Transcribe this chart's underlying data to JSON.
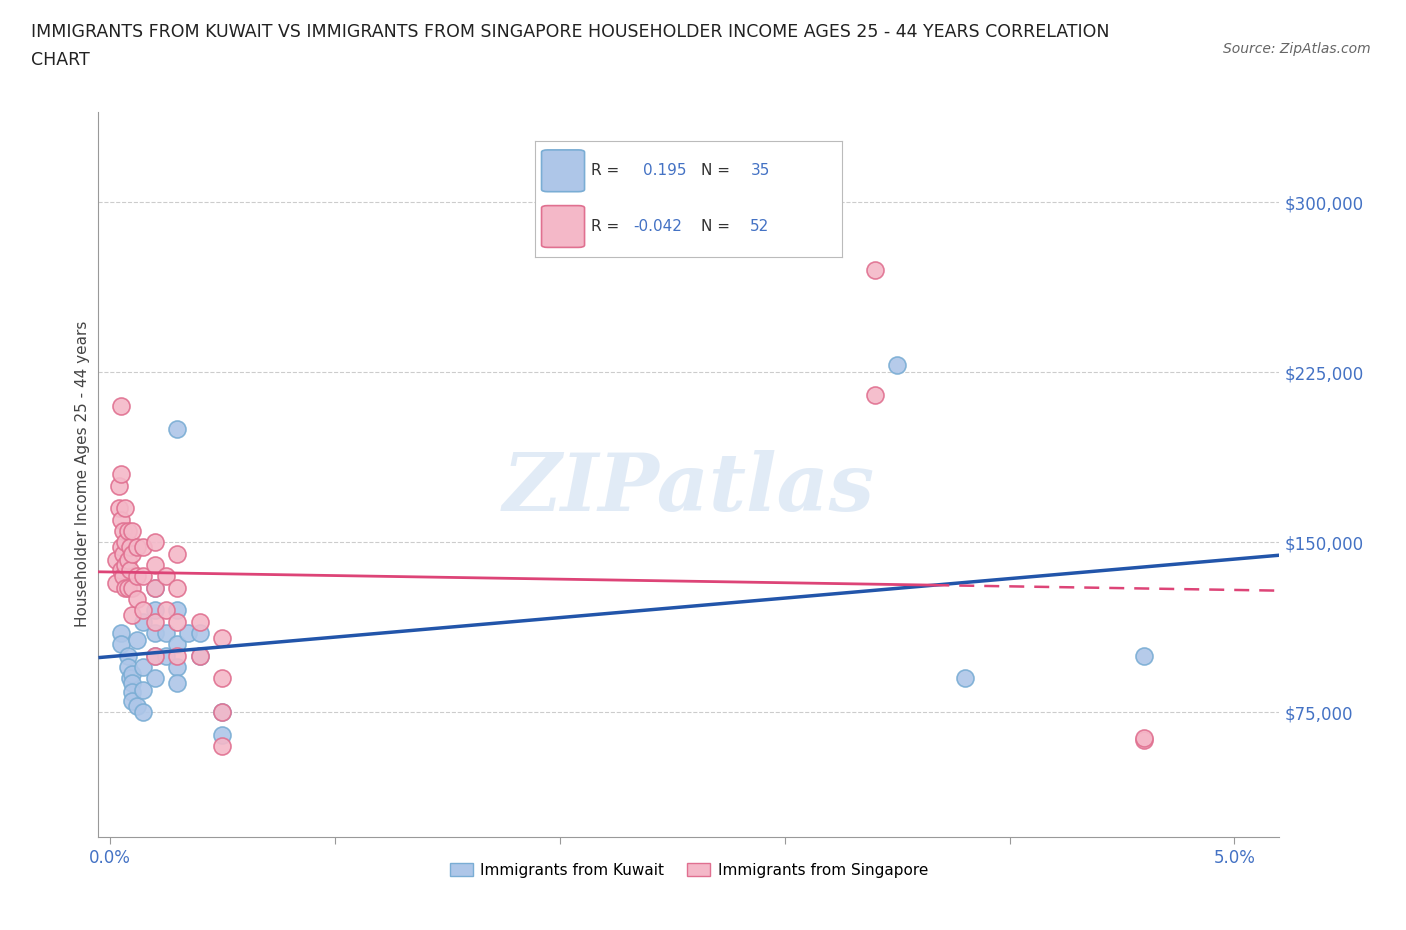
{
  "title_line1": "IMMIGRANTS FROM KUWAIT VS IMMIGRANTS FROM SINGAPORE HOUSEHOLDER INCOME AGES 25 - 44 YEARS CORRELATION",
  "title_line2": "CHART",
  "source": "Source: ZipAtlas.com",
  "ylabel": "Householder Income Ages 25 - 44 years",
  "watermark": "ZIPatlas",
  "r_kuwait": 0.195,
  "n_kuwait": 35,
  "r_singapore": -0.042,
  "n_singapore": 52,
  "xlim": [
    -0.0005,
    0.052
  ],
  "ylim": [
    20000,
    340000
  ],
  "yticks": [
    75000,
    150000,
    225000,
    300000
  ],
  "ytick_labels": [
    "$75,000",
    "$150,000",
    "$225,000",
    "$300,000"
  ],
  "xticks": [
    0.0,
    0.01,
    0.02,
    0.03,
    0.04,
    0.05
  ],
  "xtick_labels": [
    "0.0%",
    "",
    "",
    "",
    "",
    "5.0%"
  ],
  "background_color": "#ffffff",
  "grid_color": "#cccccc",
  "kuwait_color": "#aec6e8",
  "kuwait_edge_color": "#7aadd4",
  "singapore_color": "#f4b8c8",
  "singapore_edge_color": "#e07090",
  "line_kuwait_color": "#2255aa",
  "line_singapore_color": "#dd4477",
  "tick_color": "#4472c4",
  "axis_color": "#999999",
  "kuwait_points": [
    [
      0.0005,
      110000
    ],
    [
      0.0005,
      105000
    ],
    [
      0.0008,
      100000
    ],
    [
      0.0008,
      95000
    ],
    [
      0.0009,
      90000
    ],
    [
      0.001,
      92000
    ],
    [
      0.001,
      88000
    ],
    [
      0.001,
      84000
    ],
    [
      0.001,
      80000
    ],
    [
      0.0012,
      107000
    ],
    [
      0.0012,
      78000
    ],
    [
      0.0015,
      115000
    ],
    [
      0.0015,
      95000
    ],
    [
      0.0015,
      85000
    ],
    [
      0.0015,
      75000
    ],
    [
      0.002,
      130000
    ],
    [
      0.002,
      120000
    ],
    [
      0.002,
      110000
    ],
    [
      0.002,
      100000
    ],
    [
      0.002,
      90000
    ],
    [
      0.0025,
      110000
    ],
    [
      0.0025,
      100000
    ],
    [
      0.003,
      200000
    ],
    [
      0.003,
      120000
    ],
    [
      0.003,
      105000
    ],
    [
      0.003,
      95000
    ],
    [
      0.003,
      88000
    ],
    [
      0.0035,
      110000
    ],
    [
      0.004,
      110000
    ],
    [
      0.004,
      100000
    ],
    [
      0.005,
      75000
    ],
    [
      0.005,
      65000
    ],
    [
      0.035,
      228000
    ],
    [
      0.038,
      90000
    ],
    [
      0.046,
      100000
    ]
  ],
  "singapore_points": [
    [
      0.0003,
      142000
    ],
    [
      0.0003,
      132000
    ],
    [
      0.0004,
      175000
    ],
    [
      0.0004,
      165000
    ],
    [
      0.0005,
      210000
    ],
    [
      0.0005,
      180000
    ],
    [
      0.0005,
      160000
    ],
    [
      0.0005,
      148000
    ],
    [
      0.0005,
      138000
    ],
    [
      0.0006,
      155000
    ],
    [
      0.0006,
      145000
    ],
    [
      0.0006,
      135000
    ],
    [
      0.0007,
      165000
    ],
    [
      0.0007,
      150000
    ],
    [
      0.0007,
      140000
    ],
    [
      0.0007,
      130000
    ],
    [
      0.0008,
      155000
    ],
    [
      0.0008,
      142000
    ],
    [
      0.0008,
      130000
    ],
    [
      0.0009,
      148000
    ],
    [
      0.0009,
      138000
    ],
    [
      0.001,
      155000
    ],
    [
      0.001,
      145000
    ],
    [
      0.001,
      130000
    ],
    [
      0.001,
      118000
    ],
    [
      0.0012,
      148000
    ],
    [
      0.0012,
      135000
    ],
    [
      0.0012,
      125000
    ],
    [
      0.0015,
      148000
    ],
    [
      0.0015,
      135000
    ],
    [
      0.0015,
      120000
    ],
    [
      0.002,
      150000
    ],
    [
      0.002,
      140000
    ],
    [
      0.002,
      130000
    ],
    [
      0.002,
      115000
    ],
    [
      0.002,
      100000
    ],
    [
      0.0025,
      135000
    ],
    [
      0.0025,
      120000
    ],
    [
      0.003,
      145000
    ],
    [
      0.003,
      130000
    ],
    [
      0.003,
      115000
    ],
    [
      0.003,
      100000
    ],
    [
      0.004,
      115000
    ],
    [
      0.004,
      100000
    ],
    [
      0.005,
      108000
    ],
    [
      0.005,
      90000
    ],
    [
      0.005,
      75000
    ],
    [
      0.005,
      60000
    ],
    [
      0.034,
      270000
    ],
    [
      0.034,
      215000
    ],
    [
      0.046,
      63000
    ],
    [
      0.046,
      63500
    ]
  ]
}
